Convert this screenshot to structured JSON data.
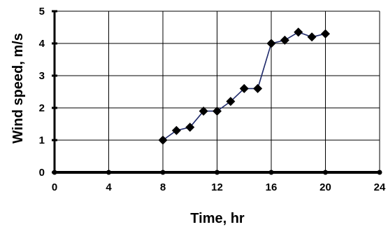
{
  "chart_data": {
    "type": "line",
    "title": "",
    "xlabel": "Time, hr",
    "ylabel": "Wind speed, m/s",
    "xlim": [
      0,
      24
    ],
    "ylim": [
      0,
      5
    ],
    "xticks": [
      0,
      4,
      8,
      12,
      16,
      20,
      24
    ],
    "yticks": [
      0,
      1,
      2,
      3,
      4,
      5
    ],
    "grid": true,
    "legend": "none",
    "colors": {
      "line": "#1f2a6b",
      "marker": "#000000",
      "grid": "#000000",
      "axis": "#000000"
    },
    "series": [
      {
        "x": [
          8,
          9,
          10,
          11,
          12,
          13,
          14,
          15,
          16,
          17,
          18,
          19,
          20
        ],
        "y": [
          1.0,
          1.3,
          1.4,
          1.9,
          1.9,
          2.2,
          2.6,
          2.6,
          4.0,
          4.1,
          4.35,
          4.2,
          4.3
        ],
        "marker": "diamond"
      }
    ]
  }
}
